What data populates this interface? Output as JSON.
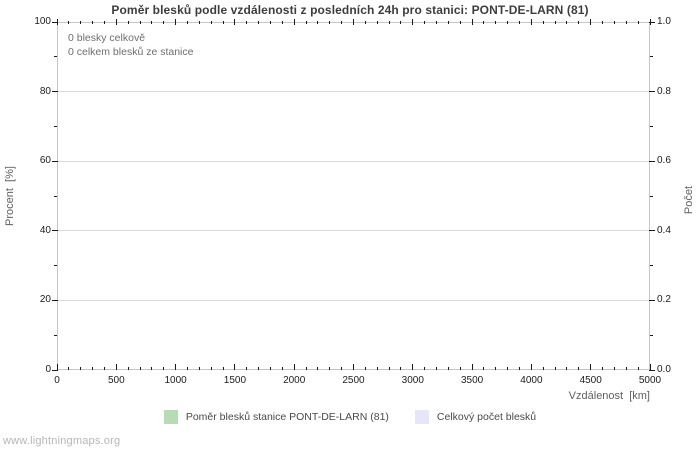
{
  "watermark": "www.lightningmaps.org",
  "chart_data": {
    "type": "bar",
    "title": "Poměr blesků podle vzdálenosti z posledních 24h pro stanici: PONT-DE-LARN (81)",
    "xlabel": "Vzdálenost  [km]",
    "ylabel_left": "Procent  [%]",
    "ylabel_right": "Počet",
    "xlim": [
      0,
      5000
    ],
    "x_ticks": [
      0,
      500,
      1000,
      1500,
      2000,
      2500,
      3000,
      3500,
      4000,
      4500,
      5000
    ],
    "x_minor_step": 100,
    "ylim_left": [
      0,
      100
    ],
    "y_left_ticks": [
      0,
      20,
      40,
      60,
      80,
      100
    ],
    "y_left_minor_step": 10,
    "ylim_right": [
      0.0,
      1.0
    ],
    "y_right_ticks": [
      "0.0",
      "0.2",
      "0.4",
      "0.6",
      "0.8",
      "1.0"
    ],
    "grid": "horizontal-only",
    "legend_position": "bottom-center",
    "annotations": [
      "0 blesky celkově",
      "0 celkem blesků ze stanice"
    ],
    "series": [
      {
        "name": "Poměr blesků stanice PONT-DE-LARN (81)",
        "color": "#b6dcb6",
        "values": []
      },
      {
        "name": "Celkový počet blesků",
        "color": "#e7e6f9",
        "values": []
      }
    ]
  }
}
